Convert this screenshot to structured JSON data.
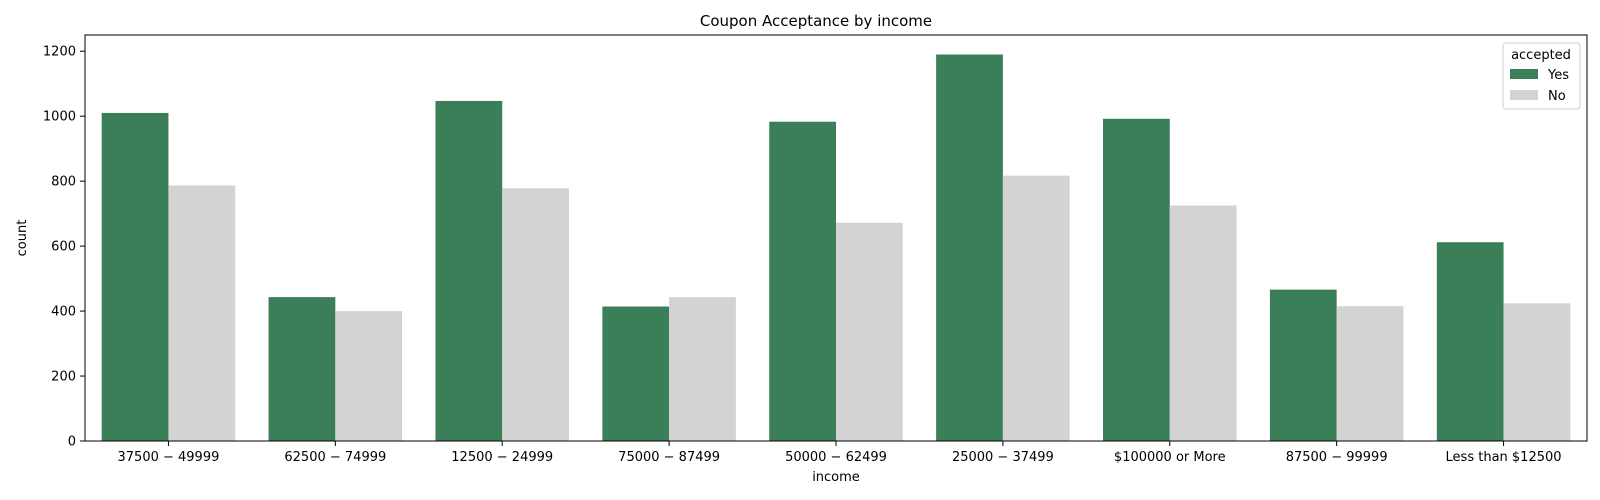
{
  "chart_data": {
    "type": "bar",
    "title": "Coupon Acceptance by income",
    "xlabel": "income",
    "ylabel": "count",
    "categories": [
      "$37500 - $49999",
      "$62500 - $74999",
      "$12500 - $24999",
      "$75000 - $87499",
      "$50000 - $62499",
      "$25000 - $37499",
      "$100000 or More",
      "$87500 - $99999",
      "Less than $12500"
    ],
    "category_labels_as_rendered": [
      "37500 − 49999",
      "62500 − 74999",
      "12500 − 24999",
      "75000 − 87499",
      "50000 − 62499",
      "25000 − 37499",
      "$100000 or More",
      "87500 − 99999",
      "Less than $12500"
    ],
    "series": [
      {
        "name": "Yes",
        "color": "#3a7f58",
        "values": [
          1010,
          443,
          1047,
          414,
          983,
          1190,
          992,
          466,
          612
        ]
      },
      {
        "name": "No",
        "color": "#d3d3d3",
        "values": [
          787,
          400,
          778,
          443,
          672,
          817,
          725,
          415,
          424
        ]
      }
    ],
    "ylim": [
      0,
      1250
    ],
    "yticks": [
      0,
      200,
      400,
      600,
      800,
      1000,
      1200
    ],
    "legend": {
      "title": "accepted",
      "placement": "top-right"
    },
    "grid": false
  }
}
